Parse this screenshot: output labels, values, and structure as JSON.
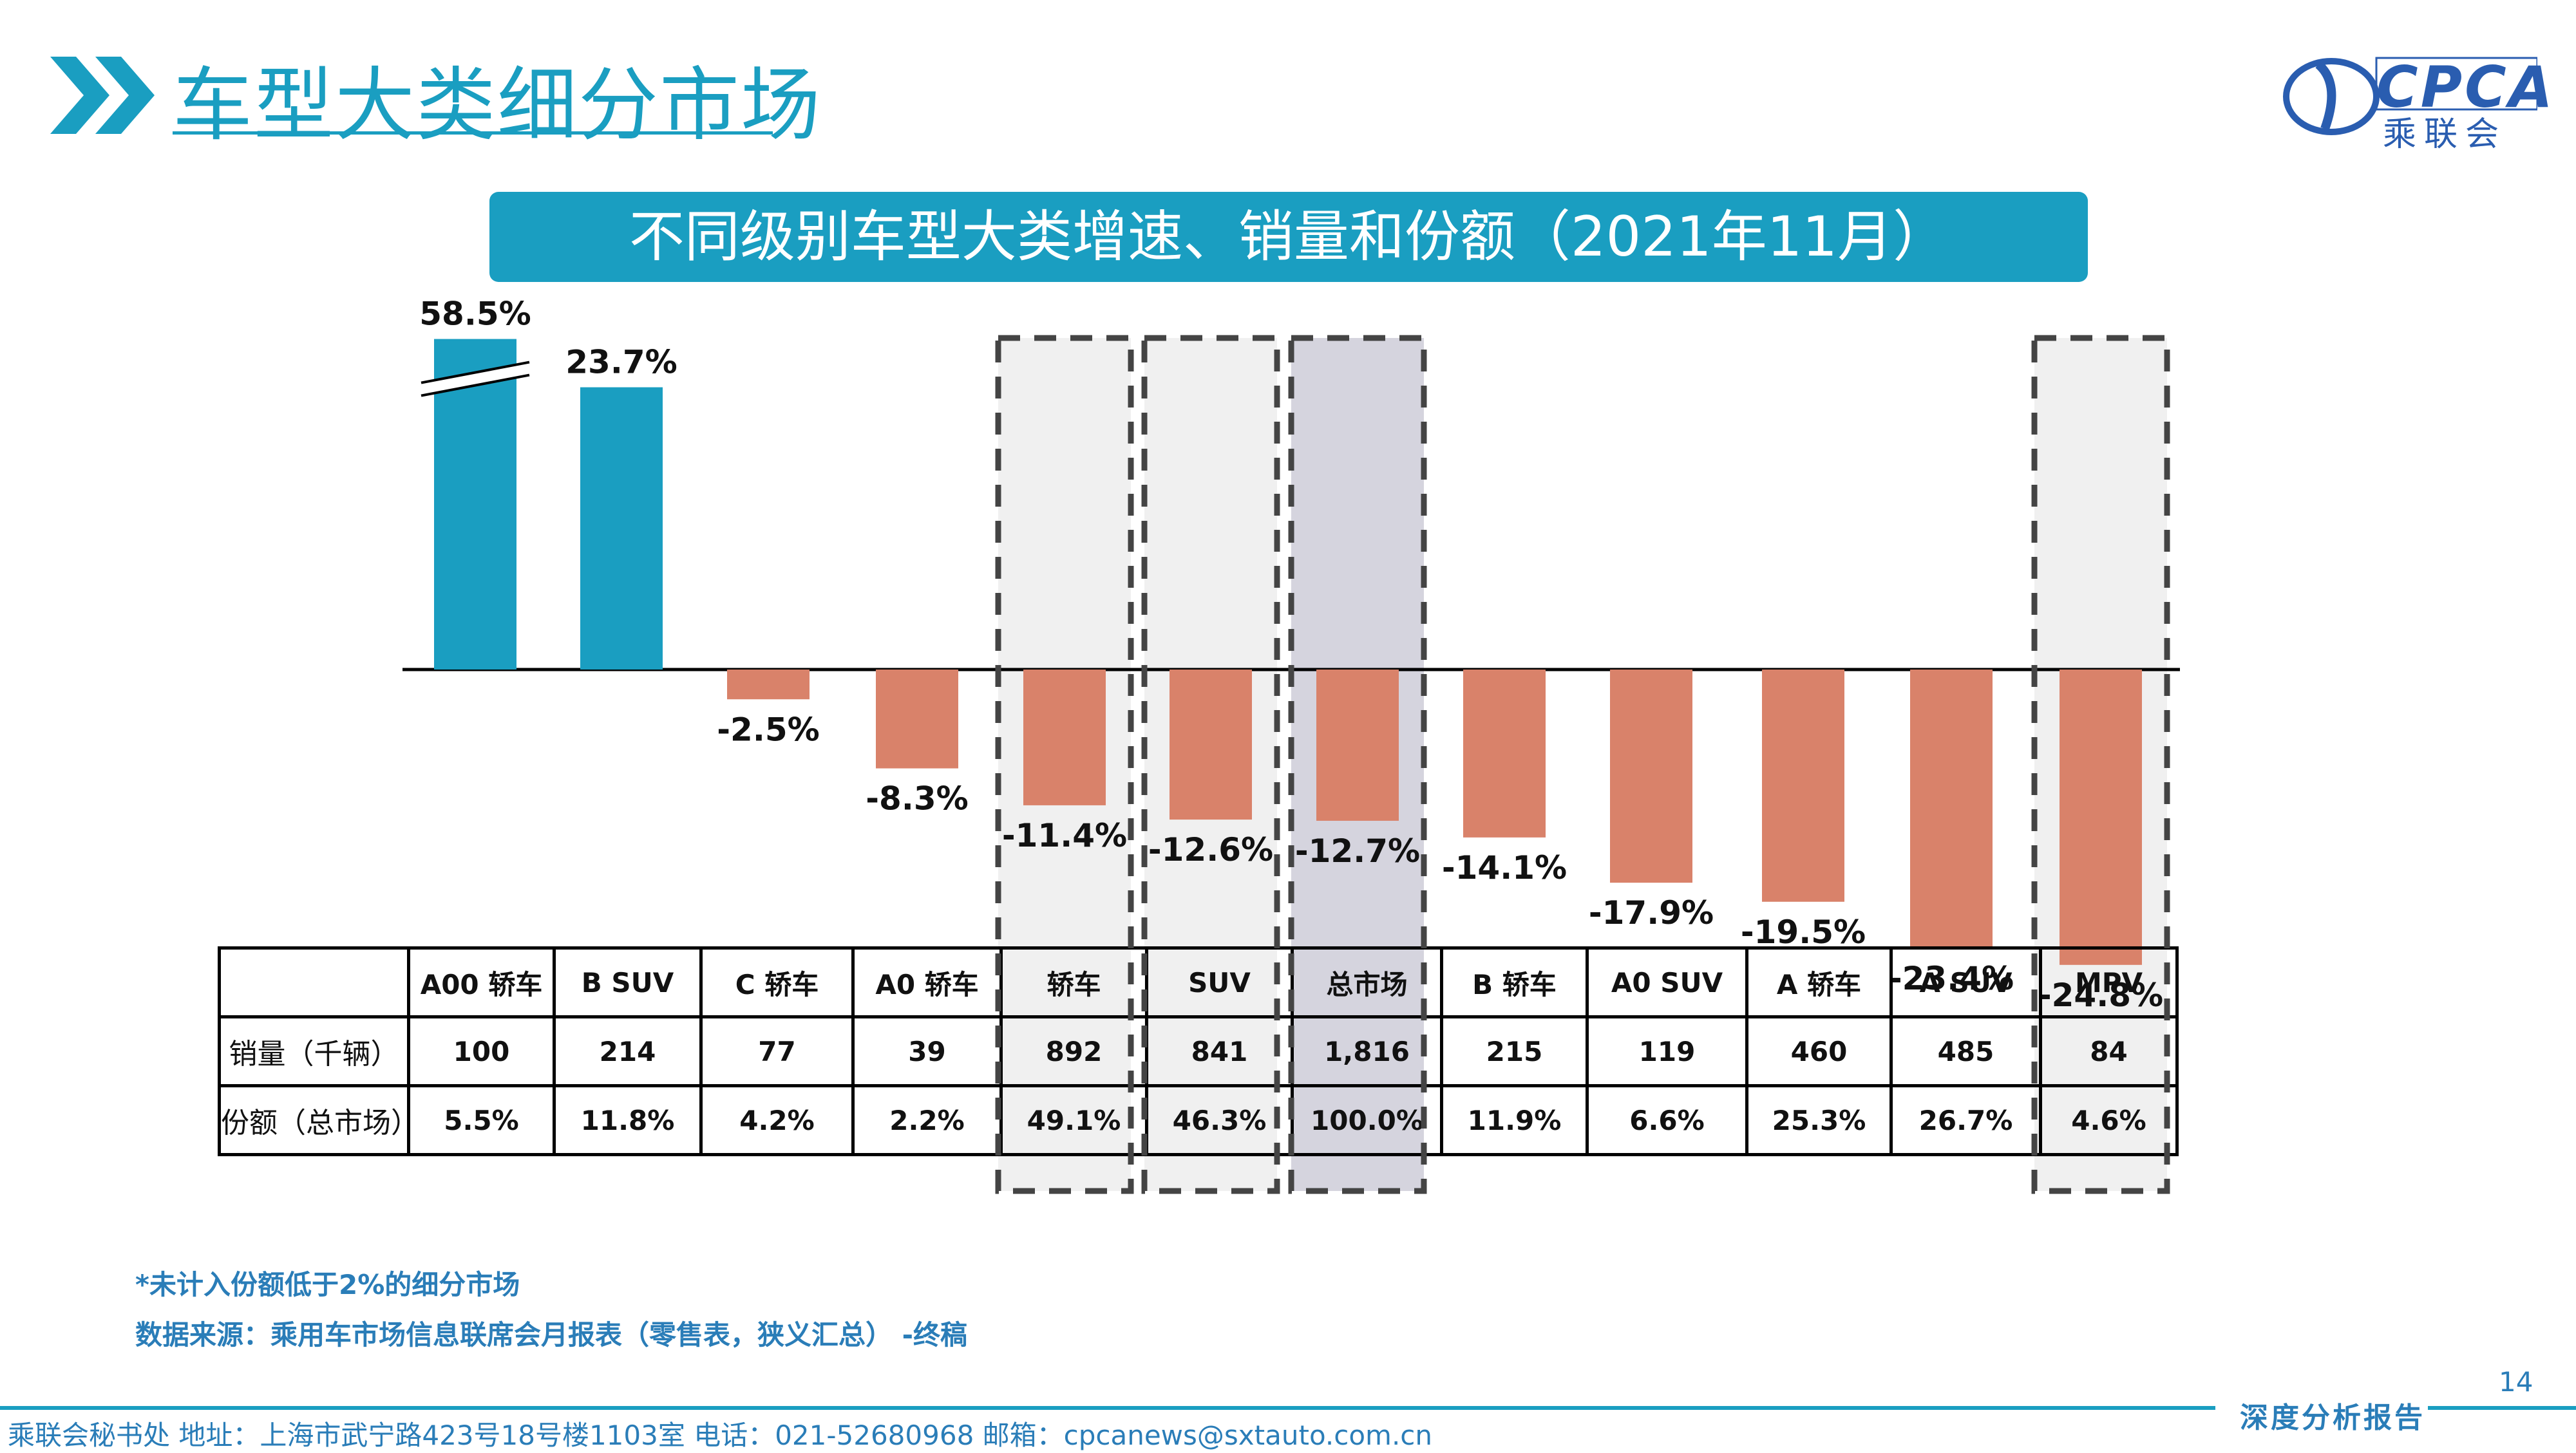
{
  "header": {
    "title": "车型大类细分市场"
  },
  "logo": {
    "text": "CPCA",
    "sub": "乘联会"
  },
  "banner": {
    "text": "不同级别车型大类增速、销量和份额（2021年11月）"
  },
  "chart_data": {
    "type": "bar",
    "title": "不同级别车型大类增速、销量和份额（2021年11月）",
    "categories": [
      "A00 轿车",
      "B SUV",
      "C 轿车",
      "A0 轿车",
      "轿车",
      "SUV",
      "总市场",
      "B 轿车",
      "A0 SUV",
      "A 轿车",
      "A SUV",
      "MPV"
    ],
    "values": [
      58.5,
      23.7,
      -2.5,
      -8.3,
      -11.4,
      -12.6,
      -12.7,
      -14.1,
      -17.9,
      -19.5,
      -23.4,
      -24.8
    ],
    "value_labels": [
      "58.5%",
      "23.7%",
      "-2.5%",
      "-8.3%",
      "-11.4%",
      "-12.6%",
      "-12.7%",
      "-14.1%",
      "-17.9%",
      "-19.5%",
      "-23.4%",
      "-24.8%"
    ],
    "unit": "%",
    "axis_break_on": "A00 轿车",
    "highlighted": [
      "轿车",
      "SUV",
      "总市场",
      "MPV"
    ],
    "colors": {
      "positive": "#1a9ec1",
      "negative": "#d9826a",
      "highlight_box": "#f0f0f0",
      "highlight_total": "#d5d4de",
      "dash": "#444444"
    },
    "grid": false,
    "legend": "none"
  },
  "table": {
    "rows": [
      {
        "label": "销量（千辆）",
        "cells": [
          "100",
          "214",
          "77",
          "39",
          "892",
          "841",
          "1,816",
          "215",
          "119",
          "460",
          "485",
          "84"
        ]
      },
      {
        "label": "份额（总市场）",
        "cells": [
          "5.5%",
          "11.8%",
          "4.2%",
          "2.2%",
          "49.1%",
          "46.3%",
          "100.0%",
          "11.9%",
          "6.6%",
          "25.3%",
          "26.7%",
          "4.6%"
        ]
      }
    ]
  },
  "footer": {
    "footnote": "*未计入份额低于2%的细分市场",
    "source": "数据来源：乘用车市场信息联席会月报表（零售表，狭义汇总） -终稿",
    "page_number": "14",
    "report_tag": "深度分析报告",
    "contact": "乘联会秘书处   地址：上海市武宁路423号18号楼1103室  电话：021-52680968   邮箱：cpcanews@sxtauto.com.cn"
  }
}
